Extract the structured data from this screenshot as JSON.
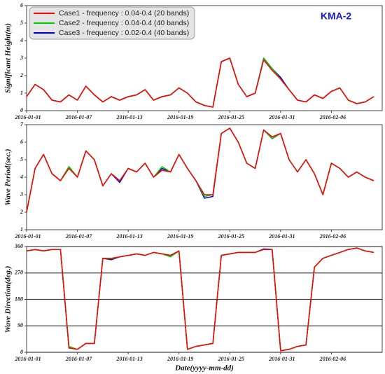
{
  "chart_data": [
    {
      "type": "line",
      "ylabel": "Significant Height(m)",
      "annotation": "KMA-2",
      "legend": "upper left",
      "x": [
        "2016-01-01",
        "2016-01-02",
        "2016-01-03",
        "2016-01-04",
        "2016-01-05",
        "2016-01-06",
        "2016-01-07",
        "2016-01-08",
        "2016-01-09",
        "2016-01-10",
        "2016-01-11",
        "2016-01-12",
        "2016-01-13",
        "2016-01-14",
        "2016-01-15",
        "2016-01-16",
        "2016-01-17",
        "2016-01-18",
        "2016-01-19",
        "2016-01-20",
        "2016-01-21",
        "2016-01-22",
        "2016-01-23",
        "2016-01-24",
        "2016-01-25",
        "2016-01-26",
        "2016-01-27",
        "2016-01-28",
        "2016-01-29",
        "2016-01-30",
        "2016-01-31",
        "2016-02-01",
        "2016-02-02",
        "2016-02-03",
        "2016-02-04",
        "2016-02-05",
        "2016-02-06",
        "2016-02-07",
        "2016-02-08",
        "2016-02-09",
        "2016-02-10",
        "2016-02-11"
      ],
      "series": [
        {
          "name": "Case1 - frequency : 0.04-0.4 (20 bands)",
          "color": "#ff0000",
          "values": [
            0.8,
            1.5,
            1.2,
            0.6,
            0.5,
            0.9,
            0.6,
            1.4,
            0.9,
            0.5,
            0.8,
            0.6,
            0.8,
            0.9,
            1.2,
            0.6,
            0.8,
            0.9,
            1.3,
            1.0,
            0.5,
            0.3,
            0.2,
            2.8,
            3.0,
            1.5,
            0.8,
            1.0,
            2.9,
            2.3,
            1.8,
            1.2,
            0.6,
            0.5,
            0.9,
            0.7,
            1.1,
            1.3,
            0.6,
            0.4,
            0.5,
            0.8
          ]
        },
        {
          "name": "Case2 - frequency : 0.04-0.4 (40 bands)",
          "color": "#00cc00",
          "values": [
            0.8,
            1.5,
            1.2,
            0.6,
            0.5,
            0.9,
            0.6,
            1.4,
            0.9,
            0.5,
            0.8,
            0.6,
            0.8,
            0.9,
            1.2,
            0.6,
            0.8,
            0.9,
            1.3,
            1.0,
            0.5,
            0.3,
            0.2,
            2.8,
            3.0,
            1.5,
            0.8,
            1.0,
            3.0,
            2.4,
            1.8,
            1.2,
            0.6,
            0.5,
            0.9,
            0.7,
            1.1,
            1.3,
            0.6,
            0.4,
            0.5,
            0.8
          ]
        },
        {
          "name": "Case3 - frequency : 0.02-0.4 (40 bands)",
          "color": "#0000cc",
          "values": [
            0.8,
            1.5,
            1.2,
            0.6,
            0.5,
            0.9,
            0.6,
            1.4,
            0.9,
            0.5,
            0.8,
            0.6,
            0.8,
            0.9,
            1.2,
            0.6,
            0.8,
            0.9,
            1.3,
            1.0,
            0.5,
            0.3,
            0.2,
            2.8,
            3.0,
            1.5,
            0.8,
            1.0,
            3.0,
            2.4,
            1.9,
            1.2,
            0.6,
            0.5,
            0.9,
            0.7,
            1.1,
            1.3,
            0.6,
            0.4,
            0.5,
            0.8
          ]
        }
      ],
      "xlim": [
        "2016-01-01",
        "2016-02-12"
      ],
      "xticks": [
        "2016-01-01",
        "2016-01-07",
        "2016-01-13",
        "2016-01-19",
        "2016-01-25",
        "2016-01-31",
        "2016-02-06"
      ],
      "ylim": [
        0,
        6
      ],
      "yticks": [
        0,
        1,
        2,
        3,
        4,
        5,
        6
      ],
      "grid": false
    },
    {
      "type": "line",
      "ylabel": "Wave Period(sec.)",
      "x": [
        "2016-01-01",
        "2016-01-02",
        "2016-01-03",
        "2016-01-04",
        "2016-01-05",
        "2016-01-06",
        "2016-01-07",
        "2016-01-08",
        "2016-01-09",
        "2016-01-10",
        "2016-01-11",
        "2016-01-12",
        "2016-01-13",
        "2016-01-14",
        "2016-01-15",
        "2016-01-16",
        "2016-01-17",
        "2016-01-18",
        "2016-01-19",
        "2016-01-20",
        "2016-01-21",
        "2016-01-22",
        "2016-01-23",
        "2016-01-24",
        "2016-01-25",
        "2016-01-26",
        "2016-01-27",
        "2016-01-28",
        "2016-01-29",
        "2016-01-30",
        "2016-01-31",
        "2016-02-01",
        "2016-02-02",
        "2016-02-03",
        "2016-02-04",
        "2016-02-05",
        "2016-02-06",
        "2016-02-07",
        "2016-02-08",
        "2016-02-09",
        "2016-02-10",
        "2016-02-11"
      ],
      "series": [
        {
          "color": "#ff0000",
          "values": [
            2.0,
            4.5,
            5.3,
            4.2,
            3.8,
            4.5,
            4.0,
            5.5,
            5.0,
            3.5,
            4.2,
            3.8,
            4.5,
            4.3,
            4.8,
            4.0,
            4.4,
            4.3,
            5.3,
            4.5,
            3.8,
            3.0,
            3.0,
            6.5,
            6.8,
            6.0,
            4.8,
            4.5,
            6.7,
            6.3,
            6.5,
            5.0,
            4.3,
            5.0,
            4.2,
            3.0,
            4.8,
            4.5,
            4.0,
            4.3,
            4.0,
            3.8
          ]
        },
        {
          "color": "#00cc00",
          "values": [
            2.0,
            4.5,
            5.3,
            4.2,
            3.8,
            4.6,
            4.0,
            5.5,
            5.0,
            3.5,
            4.2,
            3.8,
            4.5,
            4.3,
            4.8,
            4.0,
            4.6,
            4.3,
            5.3,
            4.5,
            3.8,
            2.9,
            3.0,
            6.5,
            6.8,
            6.0,
            4.8,
            4.5,
            6.7,
            6.2,
            6.5,
            5.0,
            4.3,
            5.0,
            4.2,
            3.0,
            4.8,
            4.5,
            4.0,
            4.3,
            4.0,
            3.8
          ]
        },
        {
          "color": "#0000cc",
          "values": [
            2.0,
            4.5,
            5.3,
            4.2,
            3.8,
            4.6,
            4.0,
            5.5,
            5.0,
            3.5,
            4.2,
            3.7,
            4.5,
            4.3,
            4.8,
            4.0,
            4.5,
            4.3,
            5.3,
            4.5,
            3.8,
            2.8,
            2.9,
            6.5,
            6.8,
            6.0,
            4.8,
            4.5,
            6.7,
            6.2,
            6.5,
            5.0,
            4.3,
            5.0,
            4.2,
            3.0,
            4.8,
            4.5,
            4.0,
            4.3,
            4.0,
            3.8
          ]
        }
      ],
      "xlim": [
        "2016-01-01",
        "2016-02-12"
      ],
      "xticks": [
        "2016-01-01",
        "2016-01-07",
        "2016-01-13",
        "2016-01-19",
        "2016-01-25",
        "2016-01-31",
        "2016-02-06"
      ],
      "ylim": [
        1,
        7
      ],
      "yticks": [
        1,
        2,
        3,
        4,
        5,
        6,
        7
      ],
      "grid": false
    },
    {
      "type": "line",
      "ylabel": "Wave Direction(deg.)",
      "xlabel": "Date(yyyy-mm-dd)",
      "x": [
        "2016-01-01",
        "2016-01-02",
        "2016-01-03",
        "2016-01-04",
        "2016-01-05",
        "2016-01-06",
        "2016-01-07",
        "2016-01-08",
        "2016-01-09",
        "2016-01-10",
        "2016-01-11",
        "2016-01-12",
        "2016-01-13",
        "2016-01-14",
        "2016-01-15",
        "2016-01-16",
        "2016-01-17",
        "2016-01-18",
        "2016-01-19",
        "2016-01-20",
        "2016-01-21",
        "2016-01-22",
        "2016-01-23",
        "2016-01-24",
        "2016-01-25",
        "2016-01-26",
        "2016-01-27",
        "2016-01-28",
        "2016-01-29",
        "2016-01-30",
        "2016-01-31",
        "2016-02-01",
        "2016-02-02",
        "2016-02-03",
        "2016-02-04",
        "2016-02-05",
        "2016-02-06",
        "2016-02-07",
        "2016-02-08",
        "2016-02-09",
        "2016-02-10",
        "2016-02-11"
      ],
      "series": [
        {
          "color": "#ff0000",
          "values": [
            345,
            350,
            345,
            350,
            350,
            15,
            10,
            30,
            30,
            320,
            320,
            325,
            330,
            335,
            330,
            340,
            335,
            330,
            345,
            10,
            20,
            25,
            30,
            330,
            335,
            340,
            340,
            340,
            350,
            350,
            5,
            10,
            20,
            25,
            290,
            320,
            330,
            340,
            350,
            355,
            345,
            340
          ]
        },
        {
          "color": "#00cc00",
          "values": [
            345,
            350,
            345,
            350,
            350,
            20,
            10,
            30,
            30,
            320,
            318,
            325,
            330,
            335,
            330,
            340,
            335,
            325,
            345,
            10,
            20,
            25,
            30,
            330,
            335,
            340,
            340,
            340,
            350,
            350,
            5,
            10,
            20,
            25,
            290,
            320,
            330,
            340,
            350,
            355,
            345,
            340
          ]
        },
        {
          "color": "#0000cc",
          "values": [
            345,
            350,
            345,
            350,
            350,
            15,
            10,
            30,
            30,
            320,
            315,
            325,
            330,
            335,
            330,
            340,
            335,
            330,
            345,
            10,
            20,
            25,
            30,
            330,
            335,
            340,
            340,
            340,
            352,
            350,
            5,
            10,
            20,
            25,
            290,
            320,
            330,
            340,
            350,
            355,
            345,
            340
          ]
        }
      ],
      "xlim": [
        "2016-01-01",
        "2016-02-12"
      ],
      "xticks": [
        "2016-01-01",
        "2016-01-07",
        "2016-01-13",
        "2016-01-19",
        "2016-01-25",
        "2016-01-31",
        "2016-02-06"
      ],
      "ylim": [
        0,
        360
      ],
      "yticks": [
        0,
        90,
        180,
        270,
        360
      ],
      "grid": true
    }
  ]
}
